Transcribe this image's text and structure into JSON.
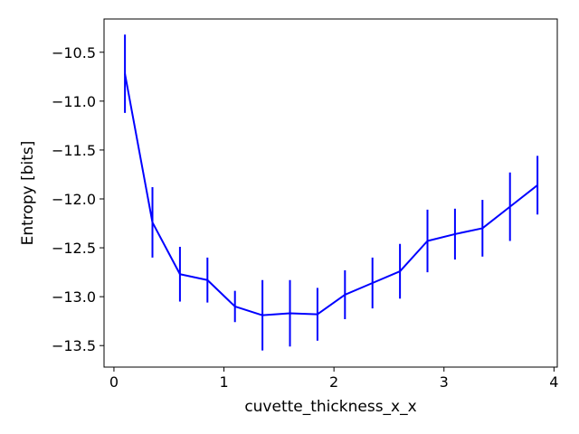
{
  "chart_data": {
    "type": "line",
    "title": "",
    "xlabel": "cuvette_thickness_x_x",
    "ylabel": "Entropy [bits]",
    "xlim": [
      -0.09,
      4.03
    ],
    "ylim": [
      -13.72,
      -10.16
    ],
    "xticks": [
      0,
      1,
      2,
      3,
      4
    ],
    "xtick_labels": [
      "0",
      "1",
      "2",
      "3",
      "4"
    ],
    "yticks": [
      -13.5,
      -13.0,
      -12.5,
      -12.0,
      -11.5,
      -11.0,
      -10.5
    ],
    "ytick_labels": [
      "−13.5",
      "−13.0",
      "−12.5",
      "−12.0",
      "−11.5",
      "−11.0",
      "−10.5"
    ],
    "grid": false,
    "legend": false,
    "color": "#0000ff",
    "series": [
      {
        "x": [
          0.1,
          0.35,
          0.6,
          0.85,
          1.1,
          1.35,
          1.6,
          1.85,
          2.1,
          2.35,
          2.6,
          2.85,
          3.1,
          3.35,
          3.6,
          3.85
        ],
        "y": [
          -10.72,
          -12.24,
          -12.77,
          -12.83,
          -13.1,
          -13.19,
          -13.17,
          -13.18,
          -12.98,
          -12.86,
          -12.74,
          -12.43,
          -12.36,
          -12.3,
          -12.08,
          -11.86
        ],
        "yerr": [
          0.4,
          0.36,
          0.28,
          0.23,
          0.16,
          0.36,
          0.34,
          0.27,
          0.25,
          0.26,
          0.28,
          0.32,
          0.26,
          0.29,
          0.35,
          0.3
        ]
      }
    ]
  }
}
